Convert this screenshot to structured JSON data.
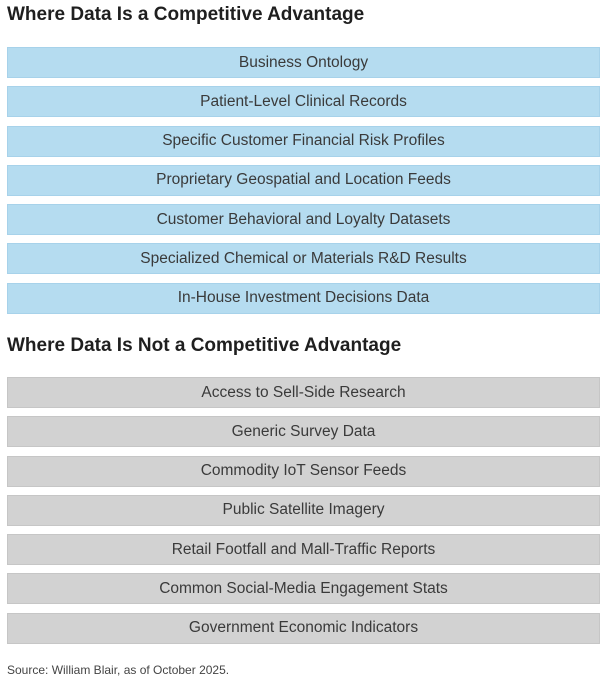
{
  "advantage": {
    "title": "Where Data Is a Competitive Advantage",
    "items": [
      "Business Ontology",
      "Patient-Level Clinical Records",
      "Specific Customer Financial Risk Profiles",
      "Proprietary Geospatial and Location Feeds",
      "Customer Behavioral and Loyalty Datasets",
      "Specialized Chemical or Materials R&D Results",
      "In-House Investment Decisions Data"
    ],
    "box_color": "#b5dcf0"
  },
  "not_advantage": {
    "title": "Where Data Is Not a Competitive Advantage",
    "items": [
      "Access to Sell-Side Research",
      "Generic Survey Data",
      "Commodity IoT Sensor Feeds",
      "Public Satellite Imagery",
      "Retail Footfall and Mall-Traffic Reports",
      "Common Social-Media Engagement Stats",
      "Government Economic Indicators"
    ],
    "box_color": "#d2d2d2"
  },
  "source": "Source: William Blair, as of October 2025."
}
